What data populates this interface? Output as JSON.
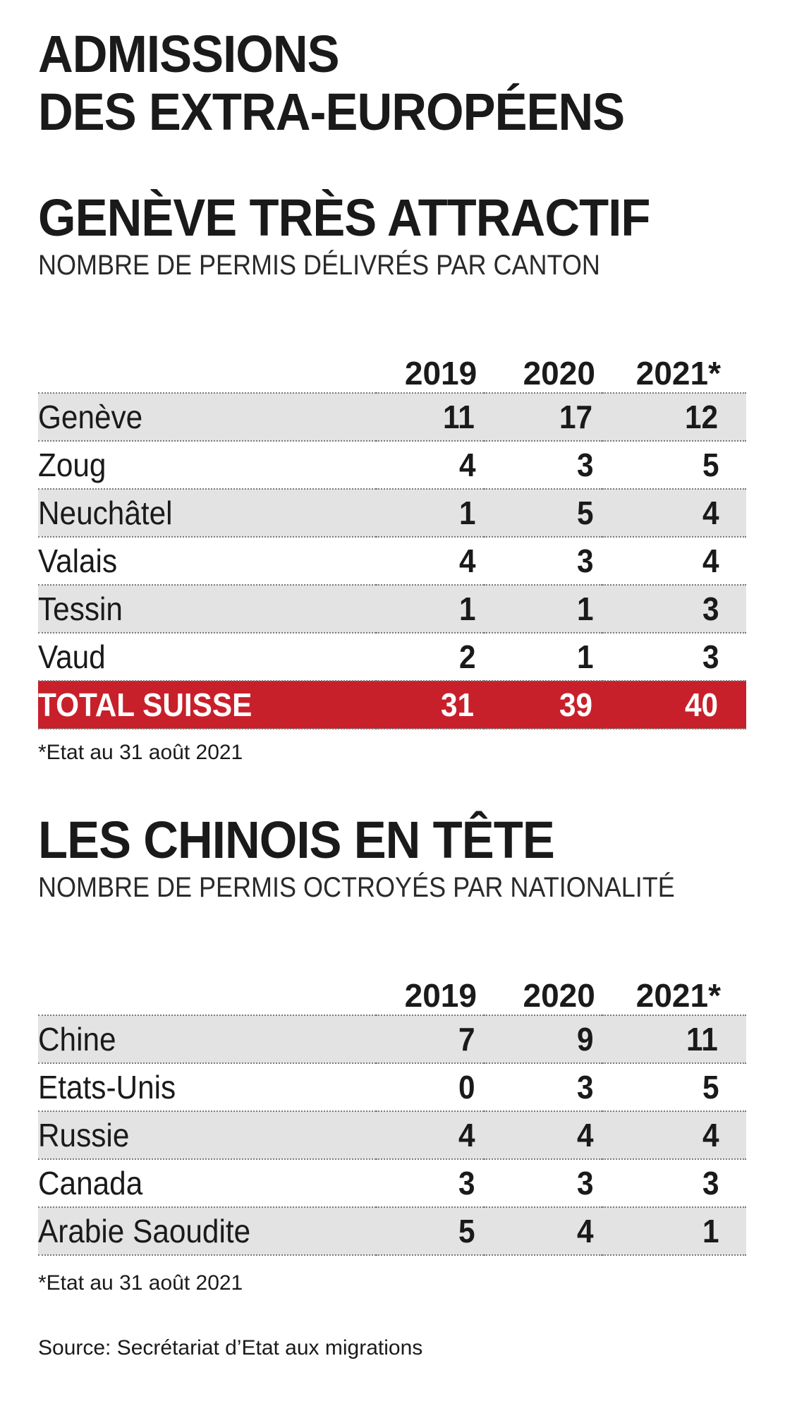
{
  "header": {
    "title_line1": "ADMISSIONS",
    "title_line2": "DES EXTRA-EUROPÉENS"
  },
  "colors": {
    "total_row": "#c8202a",
    "shaded_row": "#e3e3e3"
  },
  "chart_data": [
    {
      "type": "table",
      "title": "GENÈVE TRÈS ATTRACTIF",
      "subtitle": "NOMBRE DE PERMIS DÉLIVRÉS PAR CANTON",
      "columns": [
        "2019",
        "2020",
        "2021*"
      ],
      "rows": [
        {
          "name": "Genève",
          "values": [
            11,
            17,
            12
          ]
        },
        {
          "name": "Zoug",
          "values": [
            4,
            3,
            5
          ]
        },
        {
          "name": "Neuchâtel",
          "values": [
            1,
            5,
            4
          ]
        },
        {
          "name": "Valais",
          "values": [
            4,
            3,
            4
          ]
        },
        {
          "name": "Tessin",
          "values": [
            1,
            1,
            3
          ]
        },
        {
          "name": "Vaud",
          "values": [
            2,
            1,
            3
          ]
        }
      ],
      "total": {
        "name": "TOTAL SUISSE",
        "values": [
          31,
          39,
          40
        ]
      },
      "footnote": "*Etat au 31 août 2021"
    },
    {
      "type": "table",
      "title": "LES CHINOIS EN TÊTE",
      "subtitle": "NOMBRE DE PERMIS OCTROYÉS PAR NATIONALITÉ",
      "columns": [
        "2019",
        "2020",
        "2021*"
      ],
      "rows": [
        {
          "name": "Chine",
          "values": [
            7,
            9,
            11
          ]
        },
        {
          "name": "Etats-Unis",
          "values": [
            0,
            3,
            5
          ]
        },
        {
          "name": "Russie",
          "values": [
            4,
            4,
            4
          ]
        },
        {
          "name": "Canada",
          "values": [
            3,
            3,
            3
          ]
        },
        {
          "name": "Arabie Saoudite",
          "values": [
            5,
            4,
            1
          ]
        }
      ],
      "footnote": "*Etat au 31 août 2021"
    }
  ],
  "source": "Source: Secrétariat d’Etat aux migrations"
}
